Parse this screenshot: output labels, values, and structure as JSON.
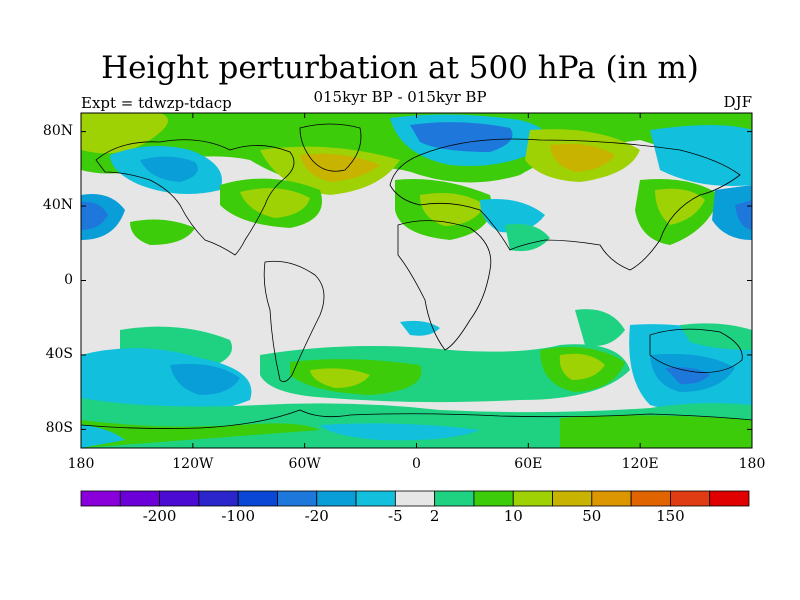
{
  "header": {
    "title": "Height perturbation at 500 hPa (in m)",
    "subtitle": "015kyr BP - 015kyr BP",
    "left_label": "Expt = tdwzp-tdacp",
    "right_label": "DJF"
  },
  "axes": {
    "lat_labels": [
      "80N",
      "40N",
      "0",
      "40S",
      "80S"
    ],
    "lat_values": [
      80,
      40,
      0,
      -40,
      -80
    ],
    "lon_labels": [
      "180",
      "120W",
      "60W",
      "0",
      "60E",
      "120E",
      "180"
    ],
    "lon_values": [
      -180,
      -120,
      -60,
      0,
      60,
      120,
      180
    ]
  },
  "map": {
    "background_color": "#e6e6e6",
    "coastline_color": "#000000",
    "lon_range": [
      -180,
      180
    ],
    "lat_range": [
      -90,
      90
    ]
  },
  "colorbar": {
    "colors": [
      "#8a00db",
      "#6c00d8",
      "#4c0bd2",
      "#2a26cc",
      "#0a47d6",
      "#1e78dc",
      "#0a9ed8",
      "#12c0dd",
      "#e6e6e6",
      "#1ed282",
      "#3ccc0a",
      "#9ed205",
      "#c8b400",
      "#dc9600",
      "#e06400",
      "#e03c14",
      "#e00000"
    ],
    "labels": [
      "-200",
      "-100",
      "-20",
      "-5",
      "2",
      "10",
      "50",
      "150"
    ],
    "label_boundaries": [
      2,
      4,
      6,
      8,
      9,
      11,
      13,
      15
    ]
  },
  "chart_data": {
    "type": "heatmap",
    "title": "Height perturbation at 500 hPa (in m)",
    "subtitle": "015kyr BP - 015kyr BP",
    "xlabel": "",
    "ylabel": "",
    "xlim": [
      -180,
      180
    ],
    "ylim": [
      -90,
      90
    ],
    "contour_levels": [
      "-200",
      "-100",
      "-20",
      "-5",
      "2",
      "10",
      "50",
      "150"
    ],
    "regions": [
      {
        "lon": -150,
        "lat": 78,
        "level_index": 10
      },
      {
        "lon": -130,
        "lat": 70,
        "level_index": 7
      },
      {
        "lon": -70,
        "lat": 45,
        "level_index": 11
      },
      {
        "lon": -40,
        "lat": 62,
        "level_index": 12
      },
      {
        "lon": 20,
        "lat": 80,
        "level_index": 6
      },
      {
        "lon": 25,
        "lat": 38,
        "level_index": 11
      },
      {
        "lon": 80,
        "lat": 64,
        "level_index": 12
      },
      {
        "lon": 120,
        "lat": 55,
        "level_index": 7
      },
      {
        "lon": 175,
        "lat": 35,
        "level_index": 6
      },
      {
        "lon": -130,
        "lat": -45,
        "level_index": 6
      },
      {
        "lon": -40,
        "lat": -52,
        "level_index": 11
      },
      {
        "lon": 80,
        "lat": -45,
        "level_index": 11
      },
      {
        "lon": 145,
        "lat": -50,
        "level_index": 5
      },
      {
        "lon": 60,
        "lat": -78,
        "level_index": 9
      }
    ]
  }
}
